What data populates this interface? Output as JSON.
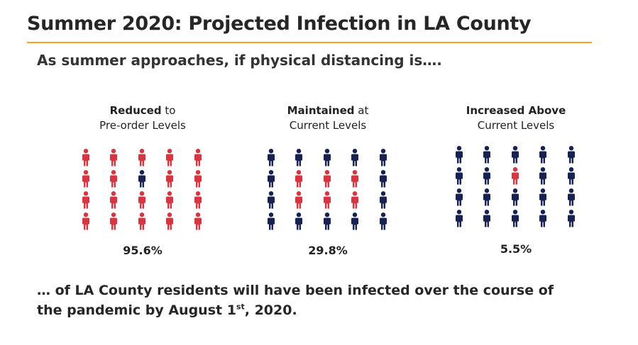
{
  "header": {
    "title": "Summer 2020: Projected Infection in LA County",
    "subtitle": "As summer approaches, if physical distancing is…."
  },
  "colors": {
    "accent_rule": "#f5a623",
    "infected": "#d9343f",
    "not_infected": "#162154"
  },
  "footer": {
    "line1": "… of LA County residents  will have been infected over the course of",
    "line2_pre": "the pandemic by August 1",
    "line2_sup": "st",
    "line2_post": ", 2020."
  },
  "chart_data": {
    "type": "pictogram",
    "icon": "person-icon",
    "rows": 4,
    "cols": 5,
    "scenarios": [
      {
        "label_strong": "Reduced",
        "label_rest": " to",
        "label_line2": "Pre-order Levels",
        "percent_label": "95.6%",
        "infected_share": 0.956,
        "not_infected_positions": [
          [
            1,
            2
          ]
        ]
      },
      {
        "label_strong": "Maintained",
        "label_rest": " at",
        "label_line2": "Current Levels",
        "percent_label": "29.8%",
        "infected_share": 0.298,
        "infected_positions": [
          [
            1,
            1
          ],
          [
            1,
            2
          ],
          [
            1,
            3
          ],
          [
            2,
            1
          ],
          [
            2,
            2
          ],
          [
            2,
            3
          ]
        ]
      },
      {
        "label_strong": "Increased Above",
        "label_rest": "",
        "label_line2": "Current Levels",
        "percent_label": "5.5%",
        "infected_share": 0.055,
        "infected_positions": [
          [
            1,
            2
          ]
        ]
      }
    ]
  }
}
